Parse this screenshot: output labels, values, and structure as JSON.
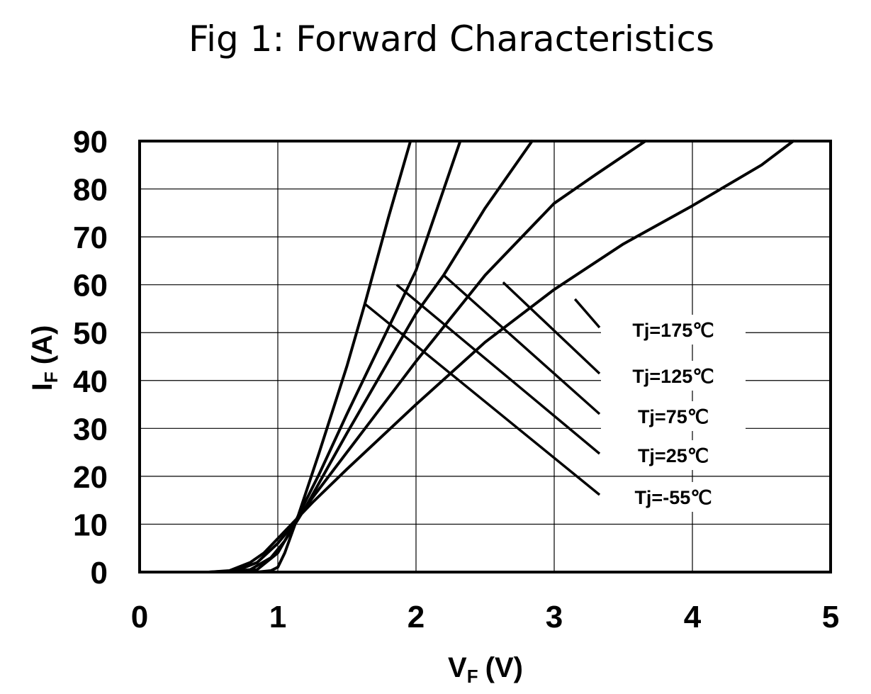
{
  "chart_data": {
    "type": "line",
    "title": "Fig 1: Forward Characteristics",
    "xlabel": {
      "main": "V",
      "sub": "F",
      "unit": "(V)"
    },
    "ylabel": {
      "main": "I",
      "sub": "F",
      "unit": "(A)"
    },
    "xlim": [
      0,
      5
    ],
    "ylim": [
      0,
      90
    ],
    "xticks": [
      0,
      1,
      2,
      3,
      4,
      5
    ],
    "yticks": [
      0,
      10,
      20,
      30,
      40,
      50,
      60,
      70,
      80,
      90
    ],
    "xtick_labels": [
      "0",
      "1",
      "2",
      "3",
      "4",
      "5"
    ],
    "ytick_labels": [
      "0",
      "10",
      "20",
      "30",
      "40",
      "50",
      "60",
      "70",
      "80",
      "90"
    ],
    "grid": true,
    "legend_placement": "right, inside plot",
    "series": [
      {
        "name": "Tj=175℃",
        "x": [
          0.0,
          0.5,
          0.65,
          0.8,
          0.9,
          1.0,
          1.1,
          1.25,
          1.5,
          2.0,
          2.5,
          3.0,
          3.5,
          4.0,
          4.5,
          4.73
        ],
        "y": [
          0,
          0,
          0.3,
          2,
          4,
          7,
          10,
          14.5,
          21.5,
          35,
          48,
          59,
          68.5,
          76.5,
          85,
          90
        ],
        "label_anchor": [
          3.15,
          57
        ]
      },
      {
        "name": "Tj=125℃",
        "x": [
          0.0,
          0.5,
          0.7,
          0.85,
          1.0,
          1.1,
          1.25,
          1.5,
          2.0,
          2.5,
          3.0,
          3.3,
          3.66
        ],
        "y": [
          0,
          0,
          0.3,
          2,
          6,
          9.5,
          15.5,
          25,
          44,
          62,
          77,
          83,
          90
        ],
        "label_anchor": [
          2.63,
          60.5
        ]
      },
      {
        "name": "Tj=75℃",
        "x": [
          0.0,
          0.6,
          0.8,
          0.95,
          1.05,
          1.2,
          1.5,
          2.0,
          2.2,
          2.5,
          2.84
        ],
        "y": [
          0,
          0,
          0.5,
          3,
          6.5,
          13.5,
          29,
          54,
          62,
          76,
          90
        ],
        "label_anchor": [
          2.2,
          62
        ]
      },
      {
        "name": "Tj=25℃",
        "x": [
          0.0,
          0.7,
          0.85,
          1.0,
          1.1,
          1.3,
          1.5,
          1.85,
          2.0,
          2.32
        ],
        "y": [
          0,
          0,
          0.5,
          4,
          9,
          20.5,
          33,
          54,
          63,
          90
        ],
        "label_anchor": [
          1.86,
          60
        ]
      },
      {
        "name": "Tj=-55℃",
        "x": [
          0.0,
          0.85,
          0.95,
          1.0,
          1.05,
          1.15,
          1.3,
          1.5,
          1.63,
          1.8,
          1.96
        ],
        "y": [
          0,
          0,
          0.3,
          1,
          4,
          12,
          25,
          43,
          56,
          74,
          90
        ],
        "label_anchor": [
          1.63,
          56
        ]
      }
    ],
    "legend_entries": [
      "Tj=175℃",
      "Tj=125℃",
      "Tj=75℃",
      "Tj=25℃",
      "Tj=-55℃"
    ]
  }
}
